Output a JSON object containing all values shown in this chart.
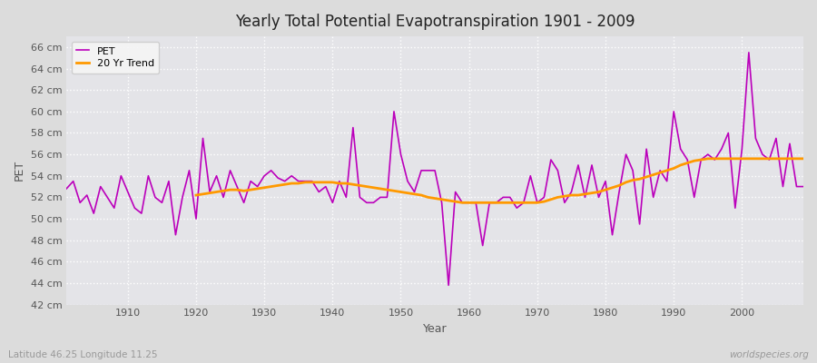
{
  "title": "Yearly Total Potential Evapotranspiration 1901 - 2009",
  "xlabel": "Year",
  "ylabel": "PET",
  "subtitle_left": "Latitude 46.25 Longitude 11.25",
  "subtitle_right": "worldspecies.org",
  "bg_color": "#dcdcdc",
  "plot_bg_color": "#e4e4e8",
  "pet_color": "#bb00bb",
  "trend_color": "#ff9900",
  "ylim": [
    42,
    67
  ],
  "xlim": [
    1901,
    2009
  ],
  "years": [
    1901,
    1902,
    1903,
    1904,
    1905,
    1906,
    1907,
    1908,
    1909,
    1910,
    1911,
    1912,
    1913,
    1914,
    1915,
    1916,
    1917,
    1918,
    1919,
    1920,
    1921,
    1922,
    1923,
    1924,
    1925,
    1926,
    1927,
    1928,
    1929,
    1930,
    1931,
    1932,
    1933,
    1934,
    1935,
    1936,
    1937,
    1938,
    1939,
    1940,
    1941,
    1942,
    1943,
    1944,
    1945,
    1946,
    1947,
    1948,
    1949,
    1950,
    1951,
    1952,
    1953,
    1954,
    1955,
    1956,
    1957,
    1958,
    1959,
    1960,
    1961,
    1962,
    1963,
    1964,
    1965,
    1966,
    1967,
    1968,
    1969,
    1970,
    1971,
    1972,
    1973,
    1974,
    1975,
    1976,
    1977,
    1978,
    1979,
    1980,
    1981,
    1982,
    1983,
    1984,
    1985,
    1986,
    1987,
    1988,
    1989,
    1990,
    1991,
    1992,
    1993,
    1994,
    1995,
    1996,
    1997,
    1998,
    1999,
    2000,
    2001,
    2002,
    2003,
    2004,
    2005,
    2006,
    2007,
    2008,
    2009
  ],
  "pet": [
    52.8,
    53.5,
    51.5,
    52.2,
    50.5,
    53.0,
    52.0,
    51.0,
    54.0,
    52.5,
    51.0,
    50.5,
    54.0,
    52.0,
    51.5,
    53.5,
    48.5,
    52.0,
    54.5,
    50.0,
    57.5,
    52.5,
    54.0,
    52.0,
    54.5,
    53.0,
    51.5,
    53.5,
    53.0,
    54.0,
    54.5,
    53.8,
    53.5,
    54.0,
    53.5,
    53.5,
    53.5,
    52.5,
    53.0,
    51.5,
    53.5,
    52.0,
    58.5,
    52.0,
    51.5,
    51.5,
    52.0,
    52.0,
    60.0,
    56.0,
    53.5,
    52.5,
    54.5,
    54.5,
    54.5,
    51.5,
    43.8,
    52.5,
    51.5,
    51.5,
    51.5,
    47.5,
    51.5,
    51.5,
    52.0,
    52.0,
    51.0,
    51.5,
    54.0,
    51.5,
    52.0,
    55.5,
    54.5,
    51.5,
    52.5,
    55.0,
    52.0,
    55.0,
    52.0,
    53.5,
    48.5,
    52.5,
    56.0,
    54.5,
    49.5,
    56.5,
    52.0,
    54.5,
    53.5,
    60.0,
    56.5,
    55.5,
    52.0,
    55.5,
    56.0,
    55.5,
    56.5,
    58.0,
    51.0,
    56.5,
    65.5,
    57.5,
    56.0,
    55.5,
    57.5,
    53.0,
    57.0,
    53.0,
    53.0
  ],
  "trend": [
    null,
    null,
    null,
    null,
    null,
    null,
    null,
    null,
    null,
    null,
    null,
    null,
    null,
    null,
    null,
    null,
    null,
    null,
    null,
    52.2,
    52.3,
    52.4,
    52.5,
    52.6,
    52.7,
    52.7,
    52.6,
    52.7,
    52.8,
    52.9,
    53.0,
    53.1,
    53.2,
    53.3,
    53.3,
    53.4,
    53.4,
    53.4,
    53.4,
    53.4,
    53.3,
    53.3,
    53.2,
    53.1,
    53.0,
    52.9,
    52.8,
    52.7,
    52.6,
    52.5,
    52.4,
    52.3,
    52.2,
    52.0,
    51.9,
    51.8,
    51.7,
    51.6,
    51.5,
    51.5,
    51.5,
    51.5,
    51.5,
    51.5,
    51.5,
    51.5,
    51.5,
    51.5,
    51.5,
    51.5,
    51.6,
    51.8,
    52.0,
    52.1,
    52.2,
    52.2,
    52.3,
    52.4,
    52.5,
    52.7,
    52.9,
    53.1,
    53.4,
    53.6,
    53.7,
    53.9,
    54.1,
    54.3,
    54.5,
    54.7,
    55.0,
    55.2,
    55.4,
    55.5,
    55.6,
    55.6,
    55.6,
    55.6,
    55.6,
    55.6,
    55.6,
    55.6,
    55.6,
    55.6,
    55.6,
    55.6,
    55.6,
    55.6,
    55.6
  ]
}
